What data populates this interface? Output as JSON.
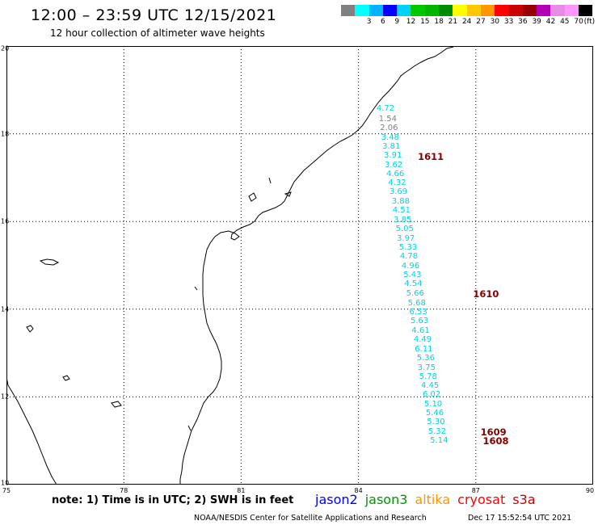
{
  "header": {
    "title": "12:00 – 23:59 UTC 12/15/2021",
    "subtitle": "12 hour collection of altimeter wave heights"
  },
  "legend": {
    "unit": "(ft)",
    "swatches": [
      {
        "color": "#808080",
        "label": ""
      },
      {
        "color": "#00ffff",
        "label": "3"
      },
      {
        "color": "#00b4ff",
        "label": "6"
      },
      {
        "color": "#0000ff",
        "label": "9"
      },
      {
        "color": "#00d2ff",
        "label": "12"
      },
      {
        "color": "#00c800",
        "label": "15"
      },
      {
        "color": "#00b400",
        "label": "18"
      },
      {
        "color": "#008c00",
        "label": "21"
      },
      {
        "color": "#ffff00",
        "label": "24"
      },
      {
        "color": "#ffc800",
        "label": "27"
      },
      {
        "color": "#ff9600",
        "label": "30"
      },
      {
        "color": "#ff0000",
        "label": "33"
      },
      {
        "color": "#c80000",
        "label": "36"
      },
      {
        "color": "#960000",
        "label": "39"
      },
      {
        "color": "#b400b4",
        "label": "42"
      },
      {
        "color": "#e68ce6",
        "label": "45"
      },
      {
        "color": "#ff96ff",
        "label": "70"
      },
      {
        "color": "#000000",
        "label": ""
      }
    ]
  },
  "map": {
    "lon_labels": [
      "75",
      "78",
      "81",
      "84",
      "87",
      "90"
    ],
    "lat_labels": [
      "20",
      "18",
      "16",
      "14",
      "12",
      "10"
    ],
    "swh_color": "#00d2e6",
    "swh_low_color": "#808080",
    "time_color": "#800000",
    "track": [
      {
        "text": "4.72",
        "lon": 84.46,
        "lat": 18.56
      },
      {
        "text": "1.54",
        "lon": 84.52,
        "lat": 18.33,
        "low": true
      },
      {
        "text": "2.06",
        "lon": 84.55,
        "lat": 18.12,
        "low": true
      },
      {
        "text": "3.48",
        "lon": 84.58,
        "lat": 17.9
      },
      {
        "text": "3.81",
        "lon": 84.61,
        "lat": 17.69
      },
      {
        "text": "3.91",
        "lon": 84.65,
        "lat": 17.49
      },
      {
        "text": "3.62",
        "lon": 84.67,
        "lat": 17.28
      },
      {
        "text": "4.66",
        "lon": 84.71,
        "lat": 17.07
      },
      {
        "text": "4.32",
        "lon": 84.76,
        "lat": 16.87
      },
      {
        "text": "3.69",
        "lon": 84.79,
        "lat": 16.66
      },
      {
        "text": "3.88",
        "lon": 84.85,
        "lat": 16.44
      },
      {
        "text": "4.51",
        "lon": 84.87,
        "lat": 16.24
      },
      {
        "text": "3.85",
        "lon": 84.9,
        "lat": 16.03
      },
      {
        "text": "5.05",
        "lon": 84.95,
        "lat": 15.82
      },
      {
        "text": "3.97",
        "lon": 84.98,
        "lat": 15.6
      },
      {
        "text": "5.33",
        "lon": 85.04,
        "lat": 15.4
      },
      {
        "text": "4.78",
        "lon": 85.06,
        "lat": 15.19
      },
      {
        "text": "4.96",
        "lon": 85.1,
        "lat": 14.98
      },
      {
        "text": "5.43",
        "lon": 85.15,
        "lat": 14.77
      },
      {
        "text": "4.54",
        "lon": 85.17,
        "lat": 14.56
      },
      {
        "text": "5.66",
        "lon": 85.22,
        "lat": 14.35
      },
      {
        "text": "5.68",
        "lon": 85.26,
        "lat": 14.13
      },
      {
        "text": "6.53",
        "lon": 85.3,
        "lat": 13.92
      },
      {
        "text": "5.63",
        "lon": 85.33,
        "lat": 13.72
      },
      {
        "text": "4.61",
        "lon": 85.36,
        "lat": 13.5
      },
      {
        "text": "4.49",
        "lon": 85.41,
        "lat": 13.29
      },
      {
        "text": "6.11",
        "lon": 85.44,
        "lat": 13.08
      },
      {
        "text": "5.36",
        "lon": 85.49,
        "lat": 12.87
      },
      {
        "text": "3.75",
        "lon": 85.51,
        "lat": 12.66
      },
      {
        "text": "5.78",
        "lon": 85.55,
        "lat": 12.45
      },
      {
        "text": "4.45",
        "lon": 85.6,
        "lat": 12.25
      },
      {
        "text": "6.02",
        "lon": 85.64,
        "lat": 12.04
      },
      {
        "text": "5.10",
        "lon": 85.68,
        "lat": 11.83
      },
      {
        "text": "5.46",
        "lon": 85.72,
        "lat": 11.62
      },
      {
        "text": "5.30",
        "lon": 85.75,
        "lat": 11.41
      },
      {
        "text": "5.32",
        "lon": 85.78,
        "lat": 11.19
      },
      {
        "text": "5.14",
        "lon": 85.83,
        "lat": 10.99
      }
    ],
    "time_labels": [
      {
        "text": "1611",
        "lon": 85.52,
        "lat": 17.47
      },
      {
        "text": "1610",
        "lon": 86.93,
        "lat": 14.35
      },
      {
        "text": "1609",
        "lon": 87.12,
        "lat": 11.2
      },
      {
        "text": "1608",
        "lon": 87.18,
        "lat": 11.0
      }
    ]
  },
  "footer": {
    "note": "note:  1) Time is in UTC;  2) SWH is in feet",
    "satellites": [
      {
        "name": "jason2",
        "color": "#0000ff"
      },
      {
        "name": "jason3",
        "color": "#009600"
      },
      {
        "name": "altika",
        "color": "#ff9600"
      },
      {
        "name": "cryosat",
        "color": "#ff0000"
      },
      {
        "name": "s3a",
        "color": "#c80000"
      }
    ],
    "credit": "NOAA/NESDIS Center for Satellite Applications and Research",
    "generated": "Dec 17 15:52:54 UTC 2021"
  }
}
